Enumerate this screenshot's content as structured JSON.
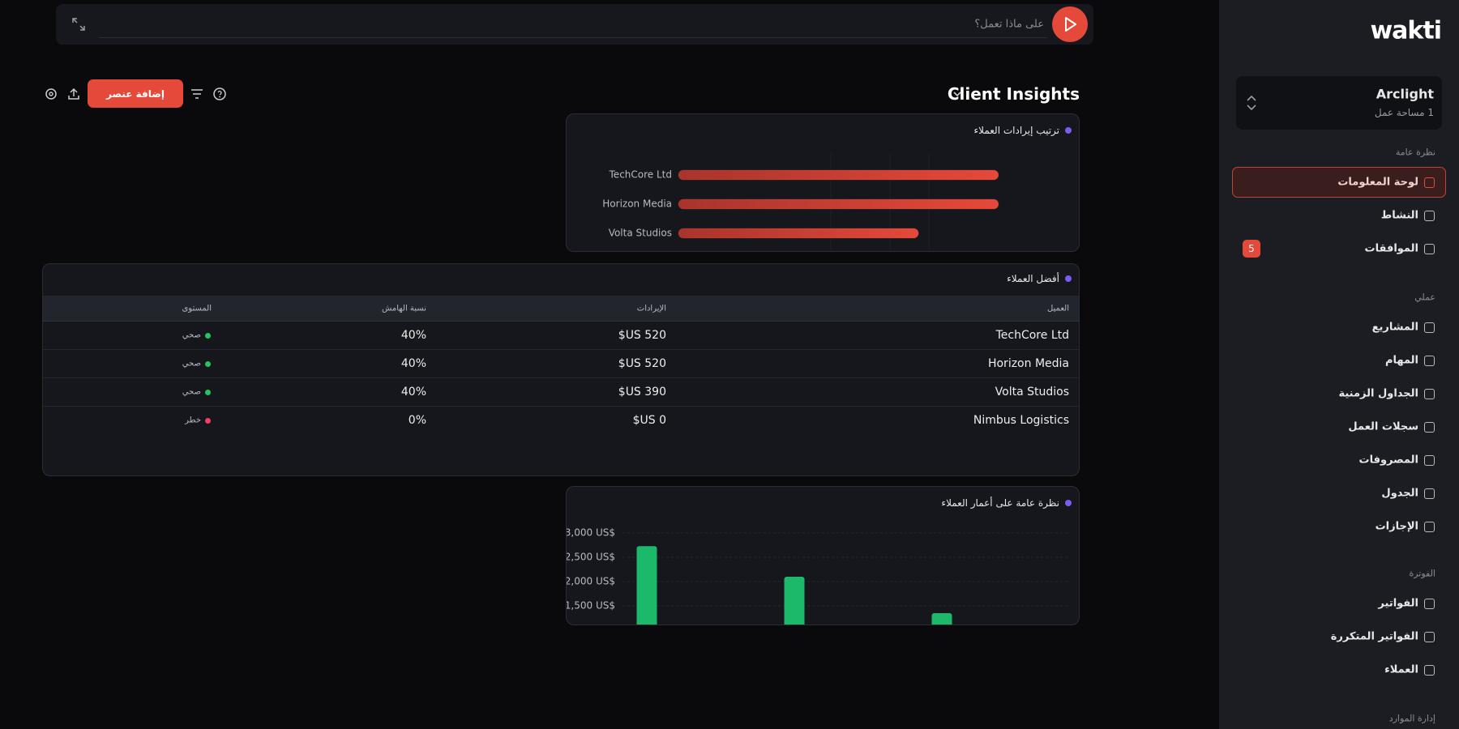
{
  "logo": "wakti",
  "workspace": {
    "name": "Arclight",
    "subtitle": "1 مساحة عمل"
  },
  "sidebar": [
    {
      "title": "نظرة عامة",
      "items": [
        {
          "label": "لوحة المعلومات"
        },
        {
          "label": "النشاط"
        },
        {
          "label": "الموافقات",
          "badge": "5"
        }
      ]
    },
    {
      "title": "عملي",
      "items": [
        {
          "label": "المشاريع"
        },
        {
          "label": "المهام"
        },
        {
          "label": "الجداول الزمنية"
        },
        {
          "label": "سجلات العمل"
        },
        {
          "label": "المصروفات"
        },
        {
          "label": "الجدول"
        },
        {
          "label": "الإجازات"
        }
      ]
    },
    {
      "title": "الفوترة",
      "items": [
        {
          "label": "الفواتير"
        },
        {
          "label": "الفواتير المتكررة"
        },
        {
          "label": "العملاء"
        }
      ]
    },
    {
      "title": "إدارة الموارد",
      "items": []
    }
  ],
  "search": {
    "placeholder": "على ماذا تعمل؟"
  },
  "page": {
    "title": "Client Insights",
    "add_button": "إضافة عنصر"
  },
  "table": {
    "title": "أفضل العملاء",
    "columns": [
      "العميل",
      "الإيرادات",
      "نسبة الهامش",
      "المستوى"
    ],
    "rows": [
      [
        "TechCore Ltd",
        "$US 520",
        "40%",
        "صحي"
      ],
      [
        "Horizon Media",
        "$US 520",
        "40%",
        "صحي"
      ],
      [
        "Volta Studios",
        "$US 390",
        "40%",
        "صحي"
      ],
      [
        "Nimbus Logistics",
        "$US 0",
        "0%",
        "خطر"
      ]
    ],
    "level_colors": [
      "#22c55e",
      "#22c55e",
      "#22c55e",
      "#f43f5e"
    ]
  },
  "chart_data": [
    {
      "type": "hbar",
      "title": "ترتيب إيرادات العملاء",
      "categories": [
        "TechCore Ltd",
        "Horizon Media",
        "Volta Studios"
      ],
      "values": [
        520,
        520,
        390
      ],
      "xlim": [
        0,
        640
      ],
      "color": "#e5493a"
    },
    {
      "type": "bar",
      "title": "نظرة عامة على أعمار العملاء",
      "categories": [
        null,
        null,
        null
      ],
      "values": [
        2730,
        2100,
        1350
      ],
      "ylim": [
        0,
        3000
      ],
      "yticks": [
        {
          "value": 3000,
          "label": "3,000 US$"
        },
        {
          "value": 2500,
          "label": "2,500 US$"
        },
        {
          "value": 2000,
          "label": "2,000 US$"
        },
        {
          "value": 1500,
          "label": "1,500 US$"
        }
      ],
      "color": "#1db96a",
      "grid": true
    }
  ]
}
